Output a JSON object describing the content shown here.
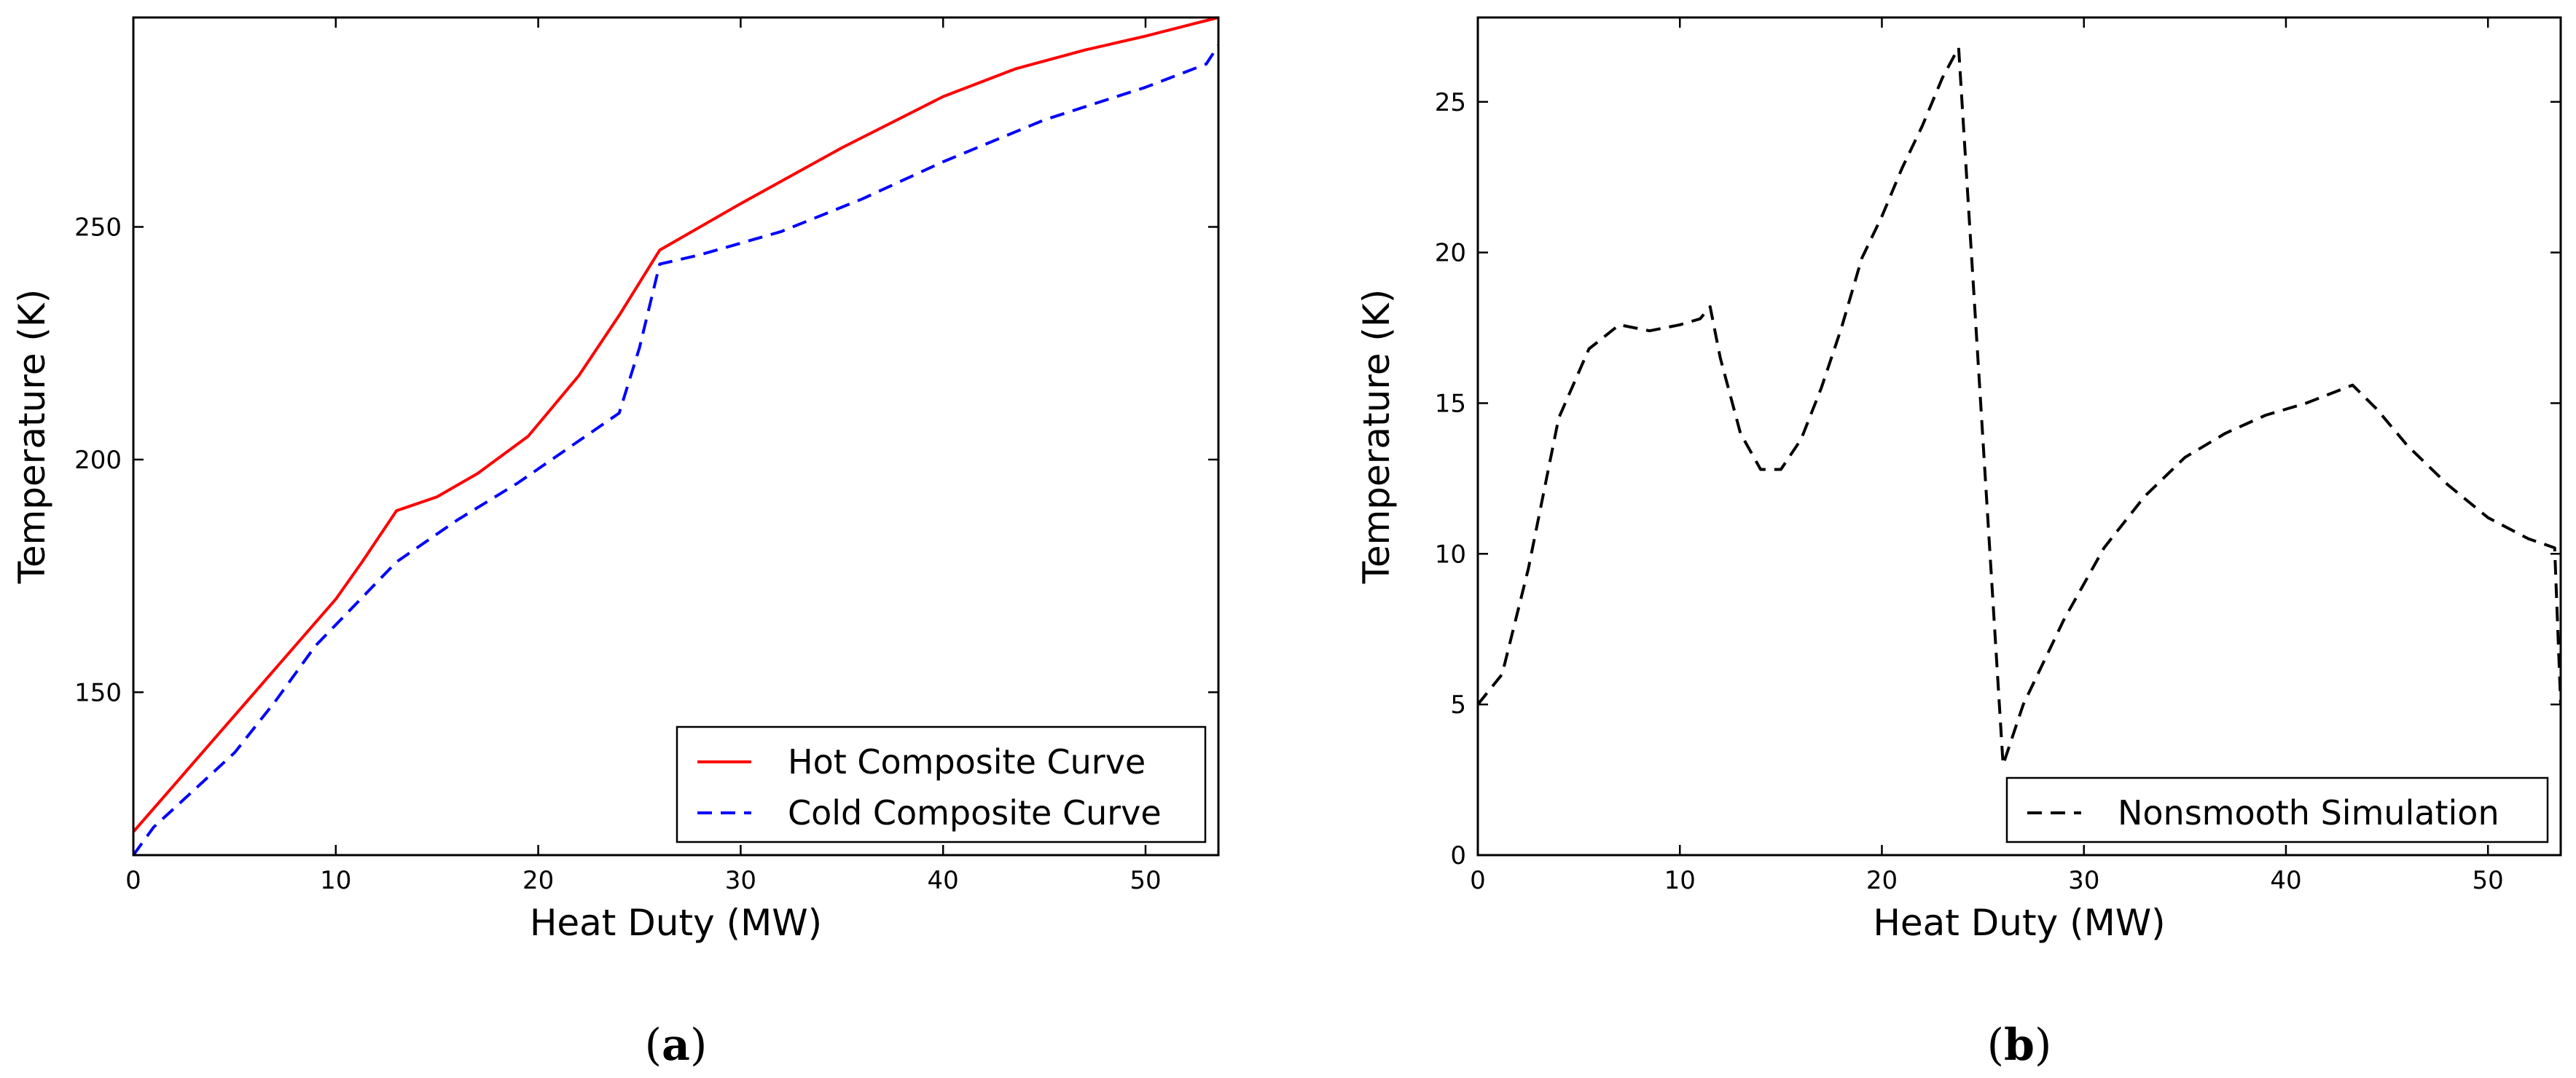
{
  "chart_data": [
    {
      "type": "line",
      "panel_label": "a",
      "xlabel": "Heat Duty (MW)",
      "ylabel": "Temperature (K)",
      "xlim": [
        0,
        53.6
      ],
      "ylim": [
        115,
        295
      ],
      "xticks": [
        0,
        10,
        20,
        30,
        40,
        50
      ],
      "yticks": [
        150,
        200,
        250
      ],
      "grid": false,
      "legend_position": "lower-right",
      "series": [
        {
          "name": "Hot Composite Curve",
          "color": "#ff0000",
          "dash": "solid",
          "x": [
            0,
            2,
            4,
            6,
            8,
            10,
            11.3,
            13,
            15,
            17,
            19.5,
            22,
            24,
            26,
            30,
            35,
            40,
            43.6,
            47,
            50,
            53.6
          ],
          "y": [
            120,
            130,
            140,
            150,
            160,
            170,
            178,
            189,
            192,
            197,
            205,
            218,
            231,
            245,
            255,
            267,
            278,
            284,
            288,
            291,
            295
          ]
        },
        {
          "name": "Cold Composite Curve",
          "color": "#0000ff",
          "dash": "dashed",
          "x": [
            0,
            1,
            3,
            5,
            7,
            9,
            11,
            13,
            16,
            19,
            22,
            24,
            25,
            26,
            28,
            32,
            36,
            40,
            45,
            50,
            53,
            53.6
          ],
          "y": [
            115,
            121,
            129,
            137,
            148,
            160,
            169,
            178,
            187,
            195,
            204,
            210,
            224,
            242,
            244,
            249,
            256,
            264,
            273,
            280,
            285,
            289
          ]
        }
      ]
    },
    {
      "type": "line",
      "panel_label": "b",
      "xlabel": "Heat Duty (MW)",
      "ylabel": "Temperature (K)",
      "xlim": [
        0,
        53.6
      ],
      "ylim": [
        0,
        27.8
      ],
      "xticks": [
        0,
        10,
        20,
        30,
        40,
        50
      ],
      "yticks": [
        0,
        5,
        10,
        15,
        20,
        25
      ],
      "grid": false,
      "legend_position": "lower-right",
      "series": [
        {
          "name": "Nonsmooth Simulation",
          "color": "#000000",
          "dash": "dashed",
          "x": [
            0,
            1.2,
            2.5,
            4,
            5.5,
            7,
            8.5,
            10,
            11,
            11.5,
            12,
            13,
            14,
            15,
            16,
            17,
            18,
            19,
            20,
            21,
            22,
            23,
            23.8,
            26,
            27,
            29,
            31,
            33,
            35,
            37,
            39,
            41,
            43.3,
            44.5,
            46,
            48,
            50,
            52,
            53.3,
            53.6
          ],
          "y": [
            5,
            6,
            9.5,
            14.5,
            16.8,
            17.6,
            17.4,
            17.6,
            17.8,
            18.2,
            16.5,
            14,
            12.8,
            12.8,
            13.8,
            15.5,
            17.5,
            19.8,
            21.2,
            22.8,
            24.2,
            25.8,
            26.8,
            3,
            5,
            7.8,
            10.2,
            11.9,
            13.2,
            14,
            14.6,
            15,
            15.6,
            14.8,
            13.6,
            12.3,
            11.2,
            10.5,
            10.2,
            5
          ]
        }
      ]
    }
  ]
}
